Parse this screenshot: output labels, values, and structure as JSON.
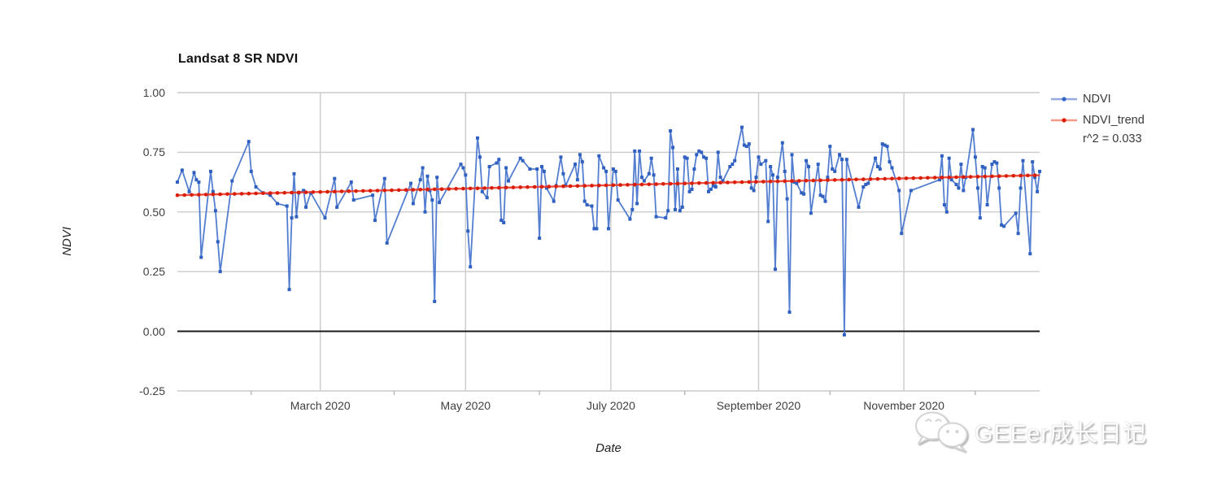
{
  "watermark": {
    "text": "GEEer成长日记",
    "icon": "wechat-icon"
  },
  "legend": {
    "position": "right"
  },
  "chart_data": {
    "type": "line",
    "title": "Landsat 8 SR NDVI",
    "xlabel": "Date",
    "ylabel": "NDVI",
    "ylim": [
      -0.25,
      1.0
    ],
    "grid": true,
    "legend_position": "right",
    "colors": {
      "grid": "#cccccc",
      "zero_line": "#1a1a1a",
      "minor_tick": "#b5b5b5",
      "ndvi_blue": "#3366cc",
      "trend_red": "#dc1806"
    },
    "y_ticks": [
      {
        "label": "1.00",
        "value": 1.0
      },
      {
        "label": "0.75",
        "value": 0.75
      },
      {
        "label": "0.50",
        "value": 0.5
      },
      {
        "label": "0.25",
        "value": 0.25
      },
      {
        "label": "0.00",
        "value": 0.0
      },
      {
        "label": "-0.25",
        "value": -0.25
      }
    ],
    "x_ticks": [
      {
        "label": "March 2020",
        "doy": 61
      },
      {
        "label": "May 2020",
        "doy": 122
      },
      {
        "label": "July 2020",
        "doy": 183
      },
      {
        "label": "September 2020",
        "doy": 245
      },
      {
        "label": "November 2020",
        "doy": 306
      }
    ],
    "minor_tick_doys": [
      32,
      92,
      153,
      214,
      275,
      336
    ],
    "x_domain_doy": [
      1,
      363
    ],
    "x_domain_year": 2020,
    "series": [
      {
        "name": "NDVI",
        "line_color": "#4170cb",
        "marker_color": "#3060c0",
        "points": [
          [
            1,
            0.625
          ],
          [
            3,
            0.675
          ],
          [
            6,
            0.585
          ],
          [
            8,
            0.665
          ],
          [
            9,
            0.635
          ],
          [
            10,
            0.625
          ],
          [
            11,
            0.31
          ],
          [
            15,
            0.67
          ],
          [
            16,
            0.585
          ],
          [
            17,
            0.505
          ],
          [
            18,
            0.375
          ],
          [
            19,
            0.25
          ],
          [
            24,
            0.63
          ],
          [
            31,
            0.795
          ],
          [
            32,
            0.67
          ],
          [
            34,
            0.605
          ],
          [
            37,
            0.58
          ],
          [
            40,
            0.57
          ],
          [
            43,
            0.535
          ],
          [
            47,
            0.525
          ],
          [
            48,
            0.175
          ],
          [
            49,
            0.475
          ],
          [
            50,
            0.66
          ],
          [
            51,
            0.48
          ],
          [
            52,
            0.58
          ],
          [
            54,
            0.59
          ],
          [
            55,
            0.52
          ],
          [
            57,
            0.58
          ],
          [
            63,
            0.475
          ],
          [
            67,
            0.64
          ],
          [
            68,
            0.52
          ],
          [
            74,
            0.625
          ],
          [
            75,
            0.55
          ],
          [
            83,
            0.57
          ],
          [
            84,
            0.465
          ],
          [
            88,
            0.64
          ],
          [
            89,
            0.37
          ],
          [
            99,
            0.62
          ],
          [
            100,
            0.535
          ],
          [
            103,
            0.635
          ],
          [
            104,
            0.685
          ],
          [
            105,
            0.5
          ],
          [
            106,
            0.65
          ],
          [
            107,
            0.59
          ],
          [
            108,
            0.55
          ],
          [
            109,
            0.125
          ],
          [
            110,
            0.645
          ],
          [
            111,
            0.54
          ],
          [
            120,
            0.7
          ],
          [
            121,
            0.685
          ],
          [
            122,
            0.655
          ],
          [
            123,
            0.42
          ],
          [
            124,
            0.27
          ],
          [
            127,
            0.81
          ],
          [
            128,
            0.73
          ],
          [
            129,
            0.585
          ],
          [
            131,
            0.56
          ],
          [
            132,
            0.69
          ],
          [
            135,
            0.705
          ],
          [
            136,
            0.72
          ],
          [
            137,
            0.465
          ],
          [
            138,
            0.455
          ],
          [
            139,
            0.685
          ],
          [
            140,
            0.63
          ],
          [
            145,
            0.725
          ],
          [
            146,
            0.715
          ],
          [
            149,
            0.68
          ],
          [
            152,
            0.68
          ],
          [
            153,
            0.39
          ],
          [
            154,
            0.69
          ],
          [
            155,
            0.67
          ],
          [
            156,
            0.6
          ],
          [
            159,
            0.545
          ],
          [
            160,
            0.61
          ],
          [
            162,
            0.73
          ],
          [
            163,
            0.66
          ],
          [
            164,
            0.61
          ],
          [
            168,
            0.7
          ],
          [
            169,
            0.635
          ],
          [
            170,
            0.74
          ],
          [
            171,
            0.71
          ],
          [
            172,
            0.545
          ],
          [
            173,
            0.53
          ],
          [
            175,
            0.525
          ],
          [
            176,
            0.43
          ],
          [
            177,
            0.43
          ],
          [
            178,
            0.735
          ],
          [
            180,
            0.685
          ],
          [
            181,
            0.67
          ],
          [
            182,
            0.43
          ],
          [
            184,
            0.68
          ],
          [
            185,
            0.67
          ],
          [
            186,
            0.55
          ],
          [
            191,
            0.47
          ],
          [
            192,
            0.51
          ],
          [
            193,
            0.755
          ],
          [
            194,
            0.535
          ],
          [
            195,
            0.755
          ],
          [
            196,
            0.645
          ],
          [
            197,
            0.63
          ],
          [
            199,
            0.66
          ],
          [
            200,
            0.725
          ],
          [
            201,
            0.655
          ],
          [
            202,
            0.48
          ],
          [
            206,
            0.475
          ],
          [
            207,
            0.505
          ],
          [
            208,
            0.84
          ],
          [
            209,
            0.77
          ],
          [
            210,
            0.51
          ],
          [
            211,
            0.68
          ],
          [
            212,
            0.505
          ],
          [
            213,
            0.52
          ],
          [
            214,
            0.73
          ],
          [
            215,
            0.725
          ],
          [
            216,
            0.585
          ],
          [
            217,
            0.595
          ],
          [
            218,
            0.68
          ],
          [
            219,
            0.74
          ],
          [
            220,
            0.755
          ],
          [
            221,
            0.75
          ],
          [
            222,
            0.73
          ],
          [
            223,
            0.725
          ],
          [
            224,
            0.585
          ],
          [
            225,
            0.595
          ],
          [
            226,
            0.61
          ],
          [
            227,
            0.605
          ],
          [
            228,
            0.75
          ],
          [
            229,
            0.645
          ],
          [
            230,
            0.63
          ],
          [
            233,
            0.69
          ],
          [
            234,
            0.7
          ],
          [
            235,
            0.715
          ],
          [
            238,
            0.855
          ],
          [
            239,
            0.78
          ],
          [
            240,
            0.775
          ],
          [
            241,
            0.785
          ],
          [
            242,
            0.6
          ],
          [
            243,
            0.59
          ],
          [
            244,
            0.645
          ],
          [
            245,
            0.73
          ],
          [
            246,
            0.7
          ],
          [
            248,
            0.715
          ],
          [
            249,
            0.46
          ],
          [
            250,
            0.69
          ],
          [
            251,
            0.655
          ],
          [
            252,
            0.26
          ],
          [
            253,
            0.645
          ],
          [
            255,
            0.79
          ],
          [
            256,
            0.67
          ],
          [
            257,
            0.555
          ],
          [
            258,
            0.08
          ],
          [
            259,
            0.74
          ],
          [
            260,
            0.625
          ],
          [
            261,
            0.62
          ],
          [
            263,
            0.58
          ],
          [
            264,
            0.575
          ],
          [
            265,
            0.715
          ],
          [
            266,
            0.69
          ],
          [
            267,
            0.495
          ],
          [
            270,
            0.7
          ],
          [
            271,
            0.57
          ],
          [
            272,
            0.565
          ],
          [
            273,
            0.545
          ],
          [
            274,
            0.645
          ],
          [
            275,
            0.775
          ],
          [
            276,
            0.68
          ],
          [
            277,
            0.67
          ],
          [
            279,
            0.74
          ],
          [
            280,
            0.72
          ],
          [
            281,
            -0.015
          ],
          [
            282,
            0.72
          ],
          [
            287,
            0.52
          ],
          [
            289,
            0.605
          ],
          [
            290,
            0.615
          ],
          [
            291,
            0.62
          ],
          [
            294,
            0.725
          ],
          [
            295,
            0.69
          ],
          [
            296,
            0.68
          ],
          [
            297,
            0.785
          ],
          [
            298,
            0.78
          ],
          [
            299,
            0.775
          ],
          [
            300,
            0.71
          ],
          [
            301,
            0.685
          ],
          [
            304,
            0.59
          ],
          [
            305,
            0.41
          ],
          [
            309,
            0.59
          ],
          [
            321,
            0.635
          ],
          [
            322,
            0.735
          ],
          [
            323,
            0.53
          ],
          [
            324,
            0.5
          ],
          [
            325,
            0.725
          ],
          [
            326,
            0.635
          ],
          [
            328,
            0.615
          ],
          [
            329,
            0.6
          ],
          [
            330,
            0.7
          ],
          [
            331,
            0.59
          ],
          [
            332,
            0.645
          ],
          [
            335,
            0.845
          ],
          [
            336,
            0.73
          ],
          [
            337,
            0.6
          ],
          [
            338,
            0.475
          ],
          [
            339,
            0.69
          ],
          [
            340,
            0.685
          ],
          [
            341,
            0.53
          ],
          [
            343,
            0.7
          ],
          [
            344,
            0.71
          ],
          [
            345,
            0.705
          ],
          [
            346,
            0.6
          ],
          [
            347,
            0.445
          ],
          [
            348,
            0.44
          ],
          [
            353,
            0.495
          ],
          [
            354,
            0.41
          ],
          [
            355,
            0.6
          ],
          [
            356,
            0.715
          ],
          [
            359,
            0.325
          ],
          [
            360,
            0.71
          ],
          [
            361,
            0.645
          ],
          [
            362,
            0.585
          ],
          [
            363,
            0.67
          ]
        ]
      },
      {
        "name": "NDVI_trend",
        "r2_label": "r^2 = 0.033",
        "line_color": "#ee3a2a",
        "marker_color": "#d81e05",
        "trend": {
          "start_value": 0.57,
          "end_value": 0.654,
          "marker_every_days": 3
        }
      }
    ]
  }
}
